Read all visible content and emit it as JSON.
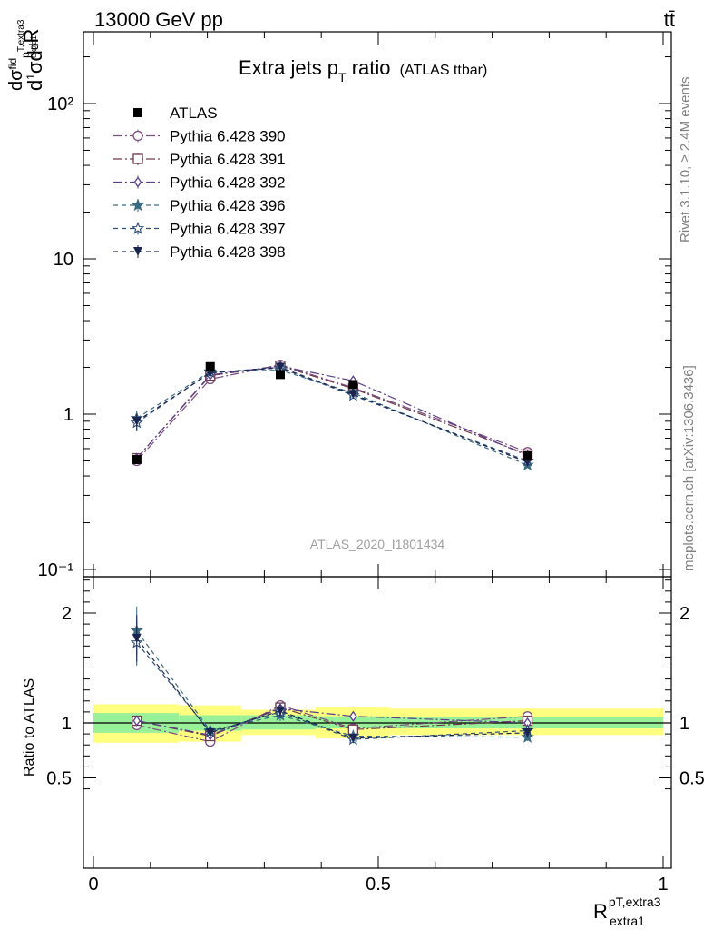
{
  "header": {
    "left": "13000 GeV pp",
    "right": "tt̄"
  },
  "side_labels": {
    "top": "Rivet 3.1.10, ≥ 2.4M events",
    "bottom": "mcplots.cern.ch [arXiv:1306.3436]"
  },
  "watermark": "ATLAS_2020_I1801434",
  "legend": {
    "entries": [
      {
        "label": "ATLAS",
        "color": "#000000",
        "marker": "square-filled",
        "dash": ""
      },
      {
        "label": "Pythia 6.428 390",
        "color": "#7b4c80",
        "marker": "circle-open",
        "dash": "10 3 2 3"
      },
      {
        "label": "Pythia 6.428 391",
        "color": "#6e3a4c",
        "marker": "square-open",
        "dash": "10 3 2 3"
      },
      {
        "label": "Pythia 6.428 392",
        "color": "#5a3e8c",
        "marker": "diamond-open",
        "dash": "10 3 2 3"
      },
      {
        "label": "Pythia 6.428 396",
        "color": "#3a6a80",
        "marker": "star-filled",
        "dash": "5 4"
      },
      {
        "label": "Pythia 6.428 397",
        "color": "#2d4f78",
        "marker": "star-open",
        "dash": "5 4"
      },
      {
        "label": "Pythia 6.428 398",
        "color": "#1a2550",
        "marker": "triangle-down-filled",
        "dash": "5 4"
      }
    ]
  },
  "chart_data": {
    "type": "line",
    "title": "Extra jets p",
    "title_sub": "T",
    "title_rest": " ratio",
    "title_small": "(ATLAS ttbar)",
    "ylabel": "1/σ dσ^fid / dR^pT,extra3_extra1",
    "xlabel_main": "R",
    "xlabel_sup": "pT,extra3",
    "xlabel_sub": "extra1",
    "ratio_ylabel": "Ratio to ATLAS",
    "xlim": [
      0,
      1
    ],
    "ylim_main": [
      0.1,
      300
    ],
    "yscale_main": "log",
    "ylim_ratio": [
      0.4,
      2.3
    ],
    "x_ticklabels": [
      "0",
      "0.5",
      "1"
    ],
    "y_main_ticklabels": [
      "10⁻¹",
      "1",
      "10",
      "10²"
    ],
    "y_ratio_ticklabels": [
      "0.5",
      "1",
      "2"
    ],
    "bins": [
      [
        0.0,
        0.15
      ],
      [
        0.15,
        0.26
      ],
      [
        0.26,
        0.39
      ],
      [
        0.39,
        0.52
      ],
      [
        0.52,
        1.0
      ]
    ],
    "data": {
      "name": "ATLAS",
      "x": [
        0.076,
        0.205,
        0.328,
        0.456,
        0.762
      ],
      "y": [
        0.51,
        2.02,
        1.8,
        1.55,
        0.54
      ],
      "stat_band": [
        [
          0.91,
          1.09
        ],
        [
          0.93,
          1.07
        ],
        [
          0.94,
          1.07
        ],
        [
          0.95,
          1.06
        ],
        [
          0.95,
          1.05
        ]
      ],
      "total_band": [
        [
          0.82,
          1.17
        ],
        [
          0.83,
          1.16
        ],
        [
          0.89,
          1.12
        ],
        [
          0.86,
          1.14
        ],
        [
          0.89,
          1.13
        ]
      ]
    },
    "series": [
      {
        "name": "Pythia 6.428 390",
        "y": [
          0.5,
          1.68,
          2.08,
          1.48,
          0.57
        ],
        "ratio": [
          0.98,
          0.83,
          1.16,
          0.95,
          1.06
        ],
        "err": [
          0.03,
          0.04,
          0.04,
          0.04,
          0.03
        ]
      },
      {
        "name": "Pythia 6.428 391",
        "y": [
          0.52,
          1.77,
          2.05,
          1.46,
          0.55
        ],
        "ratio": [
          1.02,
          0.88,
          1.14,
          0.94,
          1.02
        ],
        "err": [
          0.03,
          0.04,
          0.04,
          0.04,
          0.03
        ]
      },
      {
        "name": "Pythia 6.428 392",
        "y": [
          0.52,
          1.79,
          2.04,
          1.64,
          0.54
        ],
        "ratio": [
          1.02,
          0.89,
          1.13,
          1.06,
          1.0
        ],
        "err": [
          0.03,
          0.04,
          0.04,
          0.04,
          0.03
        ]
      },
      {
        "name": "Pythia 6.428 396",
        "y": [
          0.94,
          1.88,
          1.92,
          1.37,
          0.47
        ],
        "ratio": [
          1.84,
          0.93,
          1.07,
          0.88,
          0.87
        ],
        "err": [
          0.12,
          0.05,
          0.05,
          0.04,
          0.04
        ]
      },
      {
        "name": "Pythia 6.428 397",
        "y": [
          0.88,
          1.86,
          1.98,
          1.32,
          0.5
        ],
        "ratio": [
          1.73,
          0.92,
          1.1,
          0.85,
          0.93
        ],
        "err": [
          0.12,
          0.05,
          0.05,
          0.04,
          0.04
        ]
      },
      {
        "name": "Pythia 6.428 398",
        "y": [
          0.9,
          1.84,
          2.0,
          1.34,
          0.49
        ],
        "ratio": [
          1.77,
          0.91,
          1.11,
          0.86,
          0.91
        ],
        "err": [
          0.12,
          0.05,
          0.05,
          0.04,
          0.04
        ]
      }
    ],
    "grid": false,
    "legend_position": "top-left"
  }
}
